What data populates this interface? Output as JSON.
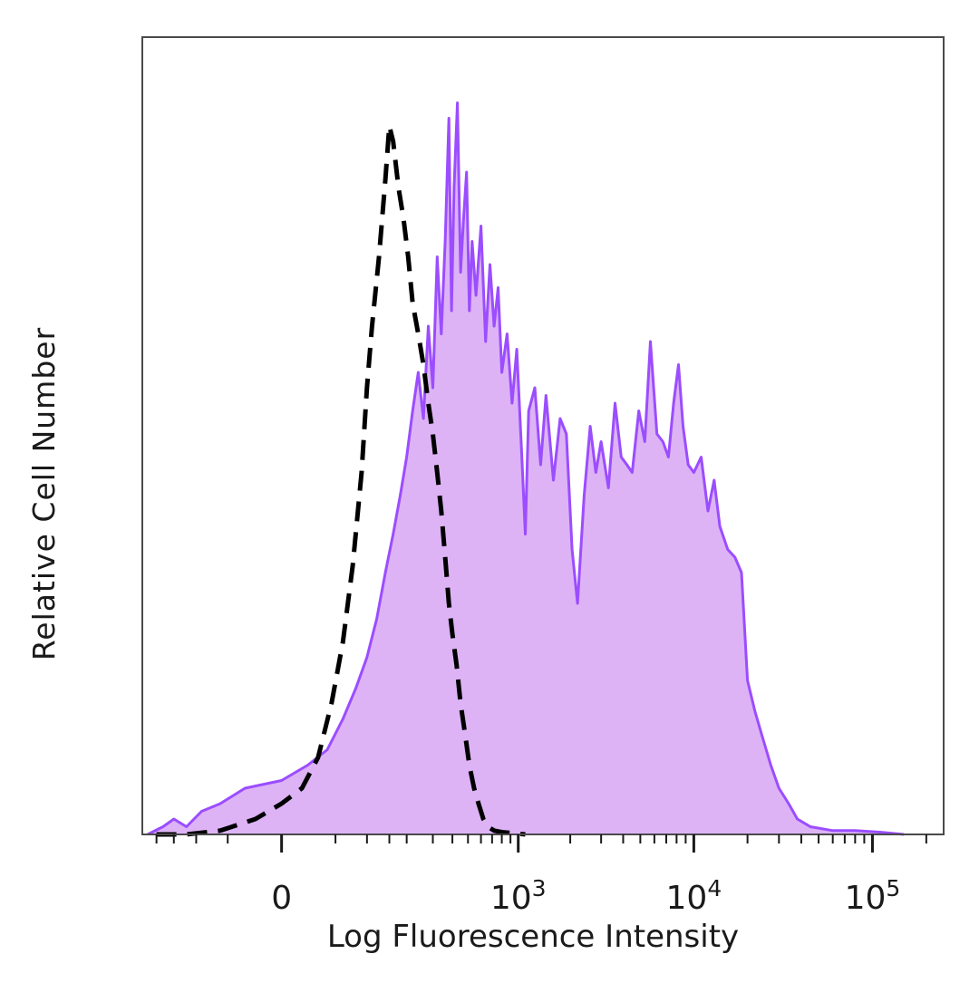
{
  "chart_data": {
    "type": "area",
    "title": "",
    "xlabel": "Log Fluorescence Intensity",
    "ylabel": "Relative Cell Number",
    "x_scale": "biexponential",
    "xlim": [
      -250,
      250000
    ],
    "ylim": [
      0,
      100
    ],
    "x_ticks": [
      {
        "value": 0,
        "base": "0",
        "exp": ""
      },
      {
        "value": 1000,
        "base": "10",
        "exp": "3"
      },
      {
        "value": 10000,
        "base": "10",
        "exp": "4"
      },
      {
        "value": 100000,
        "base": "10",
        "exp": "5"
      }
    ],
    "grid": false,
    "legend": "none",
    "series": [
      {
        "style": "filled",
        "color": "#9b4dff",
        "fill": "#ddb3f5",
        "points": [
          [
            -230,
            0
          ],
          [
            -180,
            1
          ],
          [
            -150,
            2
          ],
          [
            -120,
            1
          ],
          [
            -90,
            3
          ],
          [
            -60,
            4
          ],
          [
            -30,
            6
          ],
          [
            0,
            7
          ],
          [
            20,
            9
          ],
          [
            40,
            11
          ],
          [
            60,
            15
          ],
          [
            80,
            19
          ],
          [
            100,
            23
          ],
          [
            120,
            28
          ],
          [
            140,
            34
          ],
          [
            160,
            39
          ],
          [
            180,
            44
          ],
          [
            200,
            49
          ],
          [
            220,
            55
          ],
          [
            240,
            60
          ],
          [
            260,
            54
          ],
          [
            280,
            66
          ],
          [
            300,
            58
          ],
          [
            320,
            75
          ],
          [
            340,
            65
          ],
          [
            360,
            77
          ],
          [
            380,
            93
          ],
          [
            395,
            68
          ],
          [
            410,
            84
          ],
          [
            430,
            95
          ],
          [
            450,
            73
          ],
          [
            470,
            80
          ],
          [
            490,
            86
          ],
          [
            510,
            68
          ],
          [
            530,
            77
          ],
          [
            560,
            70
          ],
          [
            600,
            79
          ],
          [
            640,
            64
          ],
          [
            680,
            74
          ],
          [
            720,
            66
          ],
          [
            760,
            71
          ],
          [
            800,
            60
          ],
          [
            860,
            65
          ],
          [
            920,
            56
          ],
          [
            980,
            63
          ],
          [
            1050,
            49
          ],
          [
            1100,
            39
          ],
          [
            1150,
            55
          ],
          [
            1250,
            58
          ],
          [
            1350,
            48
          ],
          [
            1450,
            57
          ],
          [
            1600,
            46
          ],
          [
            1750,
            54
          ],
          [
            1900,
            52
          ],
          [
            2050,
            37
          ],
          [
            2200,
            30
          ],
          [
            2400,
            44
          ],
          [
            2600,
            53
          ],
          [
            2800,
            47
          ],
          [
            3000,
            51
          ],
          [
            3300,
            45
          ],
          [
            3600,
            56
          ],
          [
            3900,
            49
          ],
          [
            4200,
            48
          ],
          [
            4500,
            47
          ],
          [
            4900,
            55
          ],
          [
            5300,
            51
          ],
          [
            5700,
            64
          ],
          [
            6200,
            52
          ],
          [
            6700,
            51
          ],
          [
            7200,
            49
          ],
          [
            7700,
            56
          ],
          [
            8200,
            61
          ],
          [
            8700,
            53
          ],
          [
            9300,
            48
          ],
          [
            10000,
            47
          ],
          [
            11000,
            49
          ],
          [
            12000,
            42
          ],
          [
            13000,
            46
          ],
          [
            14000,
            40
          ],
          [
            15500,
            37
          ],
          [
            17000,
            36
          ],
          [
            18500,
            34
          ],
          [
            20000,
            20
          ],
          [
            22000,
            16
          ],
          [
            24000,
            13
          ],
          [
            27000,
            9
          ],
          [
            30000,
            6
          ],
          [
            34000,
            4
          ],
          [
            38000,
            2
          ],
          [
            45000,
            1
          ],
          [
            60000,
            0.5
          ],
          [
            80000,
            0.5
          ],
          [
            110000,
            0.3
          ],
          [
            150000,
            0
          ]
        ]
      },
      {
        "style": "dashed",
        "color": "#000000",
        "points": [
          [
            -200,
            0
          ],
          [
            -120,
            0
          ],
          [
            -60,
            0.5
          ],
          [
            -20,
            2
          ],
          [
            0,
            4
          ],
          [
            15,
            6
          ],
          [
            30,
            10
          ],
          [
            45,
            17
          ],
          [
            60,
            25
          ],
          [
            75,
            35
          ],
          [
            90,
            47
          ],
          [
            100,
            58
          ],
          [
            110,
            66
          ],
          [
            125,
            75
          ],
          [
            140,
            85
          ],
          [
            150,
            92
          ],
          [
            160,
            90
          ],
          [
            175,
            84
          ],
          [
            190,
            80
          ],
          [
            205,
            75
          ],
          [
            220,
            69
          ],
          [
            240,
            65
          ],
          [
            260,
            61
          ],
          [
            280,
            56
          ],
          [
            300,
            52
          ],
          [
            320,
            47
          ],
          [
            340,
            42
          ],
          [
            360,
            36
          ],
          [
            380,
            30
          ],
          [
            400,
            26
          ],
          [
            425,
            22
          ],
          [
            450,
            17
          ],
          [
            480,
            13
          ],
          [
            510,
            9
          ],
          [
            545,
            6
          ],
          [
            580,
            4
          ],
          [
            620,
            2
          ],
          [
            660,
            1
          ],
          [
            720,
            0.5
          ],
          [
            800,
            0.3
          ],
          [
            900,
            0.2
          ],
          [
            1100,
            0
          ]
        ]
      }
    ]
  }
}
